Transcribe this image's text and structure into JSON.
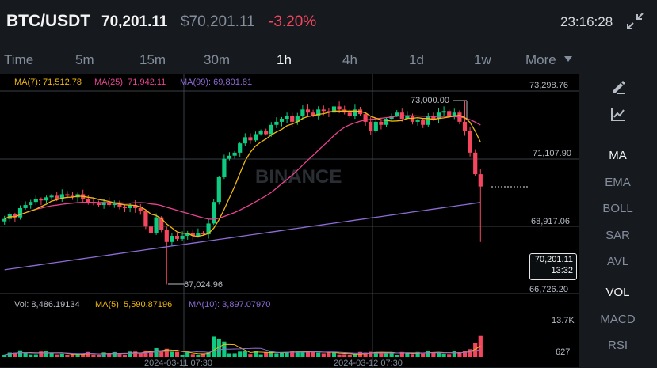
{
  "header": {
    "symbol": "BTC/USDT",
    "last_price": "70,201.11",
    "usd_price": "$70,201.11",
    "change": "-3.20%",
    "time": "23:16:28"
  },
  "timeframes": [
    "Time",
    "5m",
    "15m",
    "30m",
    "1h",
    "4h",
    "1d",
    "1w",
    "More"
  ],
  "active_timeframe": "1h",
  "legend": {
    "ma7": "MA(7): 71,512.78",
    "ma25": "MA(25): 71,942.11",
    "ma99": "MA(99): 69,801.81"
  },
  "vol_legend": {
    "vol": "Vol: 8,486.19134",
    "ma5": "MA(5): 5,590.87196",
    "ma10": "MA(10): 3,897.07970"
  },
  "price_axis": [
    "73,298.76",
    "71,107.90",
    "68,917.06",
    "66,726.20"
  ],
  "vol_axis": [
    "13.7K",
    "627"
  ],
  "annotations": {
    "high": "73,000.00",
    "low": "67,024.96"
  },
  "current": {
    "price": "70,201.11",
    "countdown": "13:32"
  },
  "dates": [
    "2024-03-11 07:30",
    "2024-03-12 07:30"
  ],
  "watermark": "BINANCE",
  "sidebar": [
    "MA",
    "EMA",
    "BOLL",
    "SAR",
    "AVL",
    "VOL",
    "MACD",
    "RSI"
  ],
  "sidebar_active": [
    "MA",
    "VOL"
  ],
  "colors": {
    "up": "#0ecb81",
    "down": "#f6465d",
    "ma7": "#f0b90b",
    "ma25": "#e84393",
    "ma99": "#8e6bd6",
    "bg": "#000000"
  },
  "icons": [
    "expand-icon",
    "draw-pen-icon",
    "indicator-chart-icon",
    "caret-down-icon"
  ],
  "chart_data": {
    "type": "candlestick",
    "price_range": [
      66726.2,
      73298.76
    ],
    "closes": [
      69150,
      69300,
      69200,
      69500,
      69600,
      69700,
      69800,
      69750,
      69850,
      69900,
      69800,
      69950,
      69900,
      69850,
      69950,
      69800,
      69700,
      69650,
      69600,
      69700,
      69600,
      69650,
      69550,
      69500,
      69600,
      69500,
      69400,
      68900,
      68700,
      69200,
      68800,
      68400,
      68600,
      68500,
      68600,
      68700,
      68600,
      68700,
      68650,
      69000,
      69700,
      70500,
      71100,
      71200,
      71300,
      71600,
      71800,
      71700,
      71900,
      72000,
      71900,
      72200,
      72300,
      72400,
      72500,
      72300,
      72500,
      72700,
      72600,
      72500,
      72700,
      72650,
      72600,
      72800,
      72700,
      72600,
      72500,
      72700,
      72550,
      72300,
      72000,
      72300,
      72200,
      72400,
      72500,
      72600,
      72400,
      72500,
      72300,
      72350,
      72200,
      72500,
      72400,
      72600,
      72650,
      72500,
      72600,
      72300,
      72000,
      71300,
      70600,
      70201.11
    ],
    "volume_range": [
      0,
      14000
    ]
  }
}
